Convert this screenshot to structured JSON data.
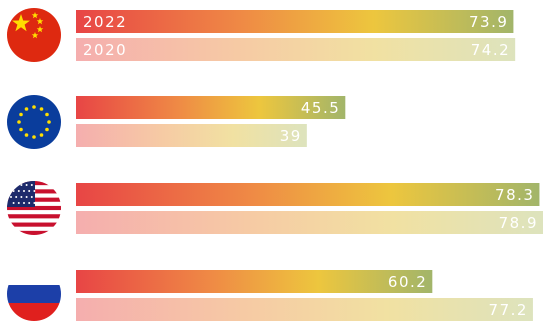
{
  "chart_data": {
    "type": "bar",
    "orientation": "horizontal",
    "categories": [
      "China",
      "European Union",
      "United States",
      "Russia"
    ],
    "series": [
      {
        "name": "2022",
        "values": [
          73.9,
          45.5,
          78.3,
          60.2
        ]
      },
      {
        "name": "2020",
        "values": [
          74.2,
          39,
          78.9,
          77.2
        ]
      }
    ],
    "legend_placement": "inside first category bars",
    "xlim": [
      0,
      78.9
    ],
    "grid": false,
    "title": "",
    "xlabel": "",
    "ylabel": "",
    "icons": [
      "flag-china-icon",
      "flag-eu-icon",
      "flag-usa-icon",
      "flag-russia-icon"
    ],
    "colors": {
      "gradient_start": "#e84545",
      "gradient_mid_1": "#ef8a45",
      "gradient_mid_2": "#edc63e",
      "gradient_end": "#a2b56a",
      "faded_start": "#f5aeae",
      "faded_mid_1": "#f6cba4",
      "faded_mid_2": "#f1e1a2",
      "faded_end": "#dde3bd"
    }
  }
}
